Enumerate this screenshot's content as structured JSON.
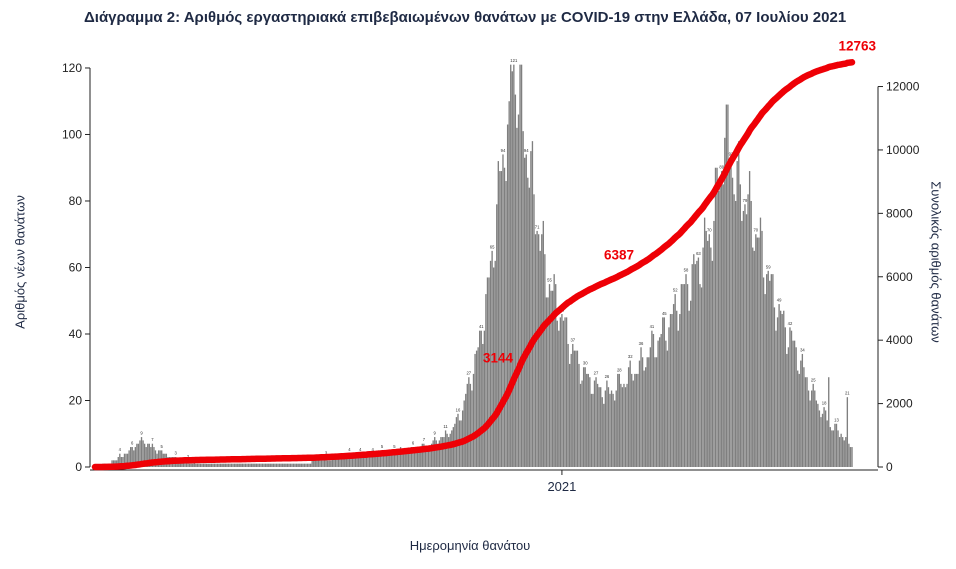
{
  "chart_data": {
    "type": "bar+line",
    "title": "Διάγραμμα 2: Αριθμός εργαστηριακά επιβεβαιωμένων θανάτων με COVID-19 στην Ελλάδα, 07 Ιουλίου 2021",
    "xlabel": "Ημερομηνία θανάτου",
    "ylabel_left": "Αριθμός νέων θανάτων",
    "ylabel_right": "Συνολικός αριθμός θανάτων",
    "x_tick_label": "2021",
    "x_tick_date": "2021-01-01",
    "start_date": "2020-03-06",
    "end_date": "2021-07-07",
    "ylim_left": [
      0,
      123
    ],
    "ylim_right": [
      0,
      12900
    ],
    "left_ticks": [
      0,
      20,
      40,
      60,
      80,
      100,
      120
    ],
    "right_ticks": [
      0,
      2000,
      4000,
      6000,
      8000,
      10000,
      12000
    ],
    "bar_color": "#7f7f7f",
    "line_color": "#ee0006",
    "text_color": "#1f2a44",
    "tick_text_color": "#222222",
    "bar_label_color": "#333333",
    "cumulative_total": 12763,
    "annotations": [
      {
        "label": "3144",
        "value": 3144
      },
      {
        "label": "6387",
        "value": 6387
      },
      {
        "label": "12763",
        "value": 12763
      }
    ],
    "daily_control_points": [
      {
        "d": "2020-03-06",
        "v": 0
      },
      {
        "d": "2020-03-15",
        "v": 1
      },
      {
        "d": "2020-03-25",
        "v": 4
      },
      {
        "d": "2020-04-05",
        "v": 8
      },
      {
        "d": "2020-04-15",
        "v": 5
      },
      {
        "d": "2020-04-30",
        "v": 2
      },
      {
        "d": "2020-05-15",
        "v": 1
      },
      {
        "d": "2020-06-15",
        "v": 1
      },
      {
        "d": "2020-07-15",
        "v": 1
      },
      {
        "d": "2020-08-10",
        "v": 3
      },
      {
        "d": "2020-09-01",
        "v": 4
      },
      {
        "d": "2020-09-20",
        "v": 5
      },
      {
        "d": "2020-10-05",
        "v": 6
      },
      {
        "d": "2020-10-20",
        "v": 10
      },
      {
        "d": "2020-10-28",
        "v": 16
      },
      {
        "d": "2020-11-08",
        "v": 35
      },
      {
        "d": "2020-11-15",
        "v": 55
      },
      {
        "d": "2020-11-22",
        "v": 85
      },
      {
        "d": "2020-11-29",
        "v": 112
      },
      {
        "d": "2020-12-02",
        "v": 118
      },
      {
        "d": "2020-12-08",
        "v": 100
      },
      {
        "d": "2020-12-15",
        "v": 78
      },
      {
        "d": "2020-12-22",
        "v": 58
      },
      {
        "d": "2020-12-31",
        "v": 46
      },
      {
        "d": "2021-01-07",
        "v": 36
      },
      {
        "d": "2021-01-15",
        "v": 28
      },
      {
        "d": "2021-01-23",
        "v": 24
      },
      {
        "d": "2021-01-31",
        "v": 22
      },
      {
        "d": "2021-02-10",
        "v": 26
      },
      {
        "d": "2021-02-20",
        "v": 30
      },
      {
        "d": "2021-02-28",
        "v": 36
      },
      {
        "d": "2021-03-10",
        "v": 42
      },
      {
        "d": "2021-03-20",
        "v": 52
      },
      {
        "d": "2021-03-31",
        "v": 62
      },
      {
        "d": "2021-04-08",
        "v": 72
      },
      {
        "d": "2021-04-16",
        "v": 99
      },
      {
        "d": "2021-04-23",
        "v": 86
      },
      {
        "d": "2021-04-30",
        "v": 80
      },
      {
        "d": "2021-05-08",
        "v": 68
      },
      {
        "d": "2021-05-15",
        "v": 55
      },
      {
        "d": "2021-05-22",
        "v": 45
      },
      {
        "d": "2021-05-31",
        "v": 36
      },
      {
        "d": "2021-06-08",
        "v": 26
      },
      {
        "d": "2021-06-15",
        "v": 19
      },
      {
        "d": "2021-06-22",
        "v": 13
      },
      {
        "d": "2021-06-30",
        "v": 10
      },
      {
        "d": "2021-07-07",
        "v": 6
      }
    ],
    "value_overrides": {
      "2020-11-28": 110,
      "2020-11-30": 119,
      "2020-12-01": 121,
      "2020-12-02": 112,
      "2021-04-16": 99,
      "2021-04-20": 93,
      "2021-06-22": 27,
      "2021-07-04": 21
    },
    "weekly_variation": 0.1
  }
}
